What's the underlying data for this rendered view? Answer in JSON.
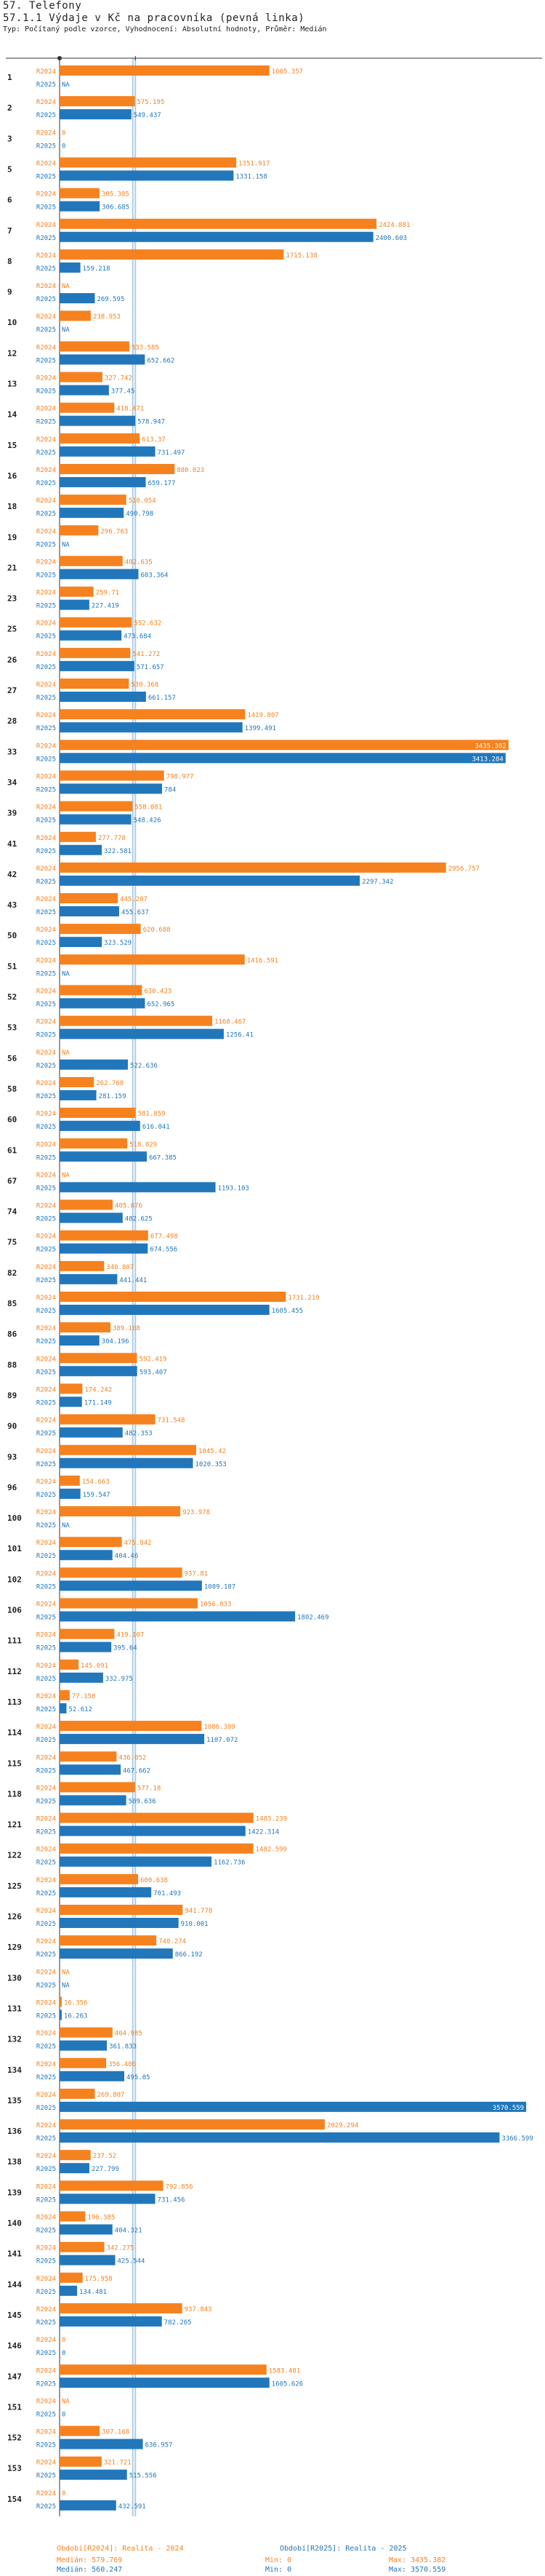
{
  "page": {
    "title_line1": "57. Telefony",
    "title_line2": "57.1.1 Výdaje v Kč na pracovníka (pevná linka)",
    "subtitle": "Typ: Počítaný podle vzorce, Vyhodnocení: Absolutní hodnoty, Průměr: Medián"
  },
  "colors": {
    "r2024": "#f5821f",
    "r2025": "#2277bb",
    "median_line": "#aecde8",
    "axis": "#333333"
  },
  "chart_data": {
    "type": "bar",
    "orientation": "horizontal",
    "title": "57.1.1 Výdaje v Kč na pracovníka (pevná linka)",
    "xlim": [
      0,
      3670
    ],
    "categories": [
      "1",
      "2",
      "3",
      "5",
      "6",
      "7",
      "8",
      "9",
      "10",
      "12",
      "13",
      "14",
      "15",
      "16",
      "18",
      "19",
      "21",
      "23",
      "25",
      "26",
      "27",
      "28",
      "33",
      "34",
      "39",
      "41",
      "42",
      "43",
      "50",
      "51",
      "52",
      "53",
      "56",
      "58",
      "60",
      "61",
      "67",
      "74",
      "75",
      "82",
      "85",
      "86",
      "88",
      "89",
      "90",
      "93",
      "96",
      "100",
      "101",
      "102",
      "106",
      "111",
      "112",
      "113",
      "114",
      "115",
      "118",
      "121",
      "122",
      "125",
      "126",
      "129",
      "130",
      "131",
      "132",
      "134",
      "135",
      "136",
      "138",
      "139",
      "140",
      "141",
      "144",
      "145",
      "146",
      "147",
      "151",
      "152",
      "153",
      "154"
    ],
    "series": [
      {
        "name": "R2024",
        "color": "#f5821f",
        "values": [
          1605.357,
          575.195,
          0,
          1351.917,
          305.385,
          2424.881,
          1715.138,
          null,
          238.953,
          533.585,
          327.742,
          418.471,
          613.37,
          880.023,
          510.054,
          296.763,
          482.635,
          259.71,
          552.632,
          541.272,
          530.368,
          1419.807,
          3435.382,
          798.977,
          558.081,
          277.778,
          2956.757,
          445.207,
          620.688,
          1416.591,
          630.423,
          1168.467,
          null,
          262.768,
          581.859,
          518.029,
          null,
          405.876,
          677.498,
          340.807,
          1731.219,
          389.108,
          592.419,
          174.242,
          731.548,
          1045.42,
          154.663,
          923.978,
          475.842,
          937.81,
          1056.833,
          419.107,
          145.091,
          77.158,
          1086.389,
          436.052,
          577.18,
          1483.239,
          1482.599,
          600.638,
          941.778,
          740.274,
          null,
          16.356,
          404.985,
          356.406,
          269.807,
          2029.294,
          237.52,
          792.856,
          196.385,
          342.275,
          175.958,
          937.843,
          0,
          1583.481,
          null,
          307.168,
          321.721,
          0.0
        ]
      },
      {
        "name": "R2025",
        "color": "#2277bb",
        "values": [
          null,
          549.437,
          0,
          1331.158,
          306.685,
          2400.603,
          159.218,
          269.595,
          null,
          652.662,
          377.45,
          578.947,
          731.497,
          659.177,
          490.798,
          null,
          603.364,
          227.419,
          473.684,
          571.657,
          661.157,
          1399.491,
          3413.284,
          784,
          548.426,
          322.581,
          2297.342,
          455.637,
          323.529,
          null,
          652.965,
          1256.41,
          522.636,
          281.159,
          616.041,
          667.385,
          1193.103,
          482.625,
          674.556,
          441.441,
          1605.455,
          304.196,
          593.407,
          171.149,
          482.353,
          1020.353,
          159.547,
          null,
          404.46,
          1089.187,
          1802.469,
          395.64,
          332.975,
          52.612,
          1107.072,
          467.662,
          509.636,
          1422.314,
          1162.736,
          701.493,
          910.001,
          866.192,
          null,
          16.263,
          361.833,
          495.05,
          3570.559,
          3366.599,
          227.799,
          731.456,
          404.321,
          425.544,
          134.481,
          782.265,
          0,
          1605.626,
          0,
          636.957,
          515.556,
          432.591
        ]
      }
    ],
    "median": {
      "R2024": 579.769,
      "R2025": 560.247
    }
  },
  "labels": {
    "series_2024": "R2024",
    "series_2025": "R2025",
    "value_2024": [
      "1605.357",
      "575.195",
      "0",
      "1351.917",
      "305.385",
      "2424.881",
      "1715.138",
      "NA",
      "238.953",
      "533.585",
      "327.742",
      "418.471",
      "613.37",
      "880.023",
      "510.054",
      "296.763",
      "482.635",
      "259.71",
      "552.632",
      "541.272",
      "530.368",
      "1419.807",
      "3435.382",
      "798.977",
      "558.081",
      "277.778",
      "2956.757",
      "445.207",
      "620.688",
      "1416.591",
      "630.423",
      "1168.467",
      "NA",
      "262.768",
      "581.859",
      "518.029",
      "NA",
      "405.876",
      "677.498",
      "340.807",
      "1731.219",
      "389.108",
      "592.419",
      "174.242",
      "731.548",
      "1045.42",
      "154.663",
      "923.978",
      "475.842",
      "937.81",
      "1056.833",
      "419.107",
      "145.091",
      "77.158",
      "1086.389",
      "436.052",
      "577.18",
      "1483.239",
      "1482.599",
      "600.638",
      "941.778",
      "740.274",
      "NA",
      "16.356",
      "404.985",
      "356.406",
      "269.807",
      "2029.294",
      "237.52",
      "792.856",
      "196.385",
      "342.275",
      "175.958",
      "937.843",
      "0",
      "1583.481",
      "NA",
      "307.168",
      "321.721",
      "0"
    ],
    "value_2025": [
      "NA",
      "549.437",
      "0",
      "1331.158",
      "306.685",
      "2400.603",
      "159.218",
      "269.595",
      "NA",
      "652.662",
      "377.45",
      "578.947",
      "731.497",
      "659.177",
      "490.798",
      "NA",
      "603.364",
      "227.419",
      "473.684",
      "571.657",
      "661.157",
      "1399.491",
      "3413.284",
      "784",
      "548.426",
      "322.581",
      "2297.342",
      "455.637",
      "323.529",
      "NA",
      "652.965",
      "1256.41",
      "522.636",
      "281.159",
      "616.041",
      "667.385",
      "1193.103",
      "482.625",
      "674.556",
      "441.441",
      "1605.455",
      "304.196",
      "593.407",
      "171.149",
      "482.353",
      "1020.353",
      "159.547",
      "NA",
      "404.46",
      "1089.187",
      "1802.469",
      "395.64",
      "332.975",
      "52.612",
      "1107.072",
      "467.662",
      "509.636",
      "1422.314",
      "1162.736",
      "701.493",
      "910.001",
      "866.192",
      "NA",
      "16.263",
      "361.833",
      "495.05",
      "3570.559",
      "3366.599",
      "227.799",
      "731.456",
      "404.321",
      "425.544",
      "134.481",
      "782.265",
      "0",
      "1605.626",
      "0",
      "636.957",
      "515.556",
      "432.591"
    ]
  },
  "footer": {
    "legend_2024": "Období[R2024]: Realita - 2024",
    "legend_2025": "Období[R2025]: Realita - 2025",
    "median_2024": "Medián: 579.769",
    "median_2025": "Medián: 560.247",
    "min_2024": "Min: 0",
    "min_2025": "Min: 0",
    "max_2024": "Max: 3435.382",
    "max_2025": "Max: 3570.559"
  }
}
